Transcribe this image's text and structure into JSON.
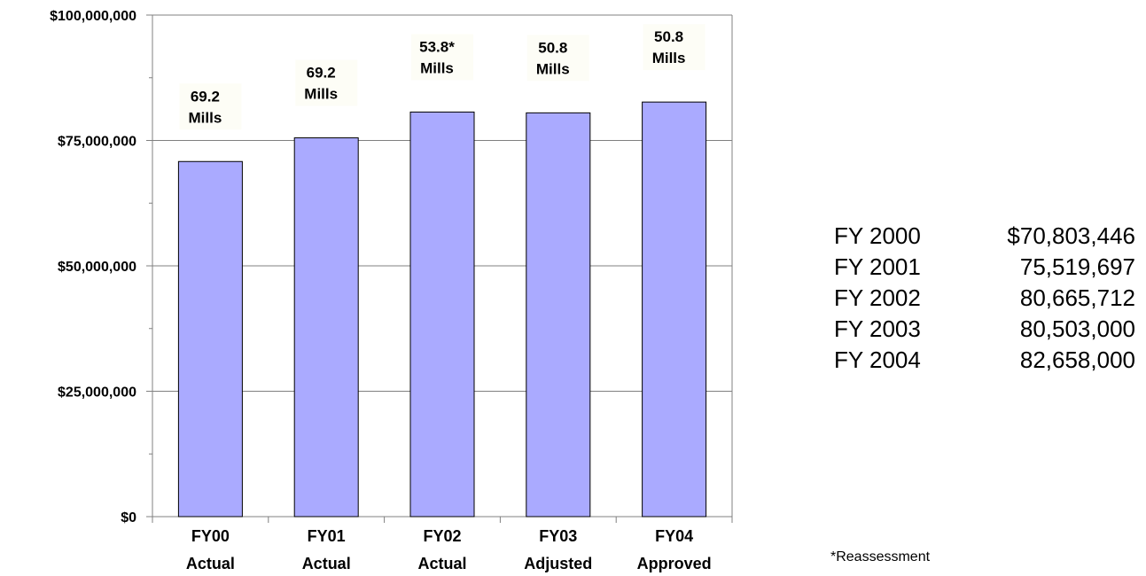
{
  "chart_data": {
    "type": "bar",
    "categories": [
      "FY00",
      "FY01",
      "FY02",
      "FY03",
      "FY04"
    ],
    "category_sublabels": [
      "Actual",
      "Actual",
      "Actual",
      "Adjusted",
      "Approved"
    ],
    "values": [
      70803446,
      75519697,
      80665712,
      80503000,
      82658000
    ],
    "bar_annotations": [
      [
        "69.2",
        "Mills"
      ],
      [
        "69.2",
        "Mills"
      ],
      [
        "53.8*",
        "Mills"
      ],
      [
        "50.8",
        "Mills"
      ],
      [
        "50.8",
        "Mills"
      ]
    ],
    "yticks": [
      0,
      25000000,
      50000000,
      75000000,
      100000000
    ],
    "ytick_labels": [
      "$0",
      "$25,000,000",
      "$50,000,000",
      "$75,000,000",
      "$100,000,000"
    ],
    "ylim": [
      0,
      100000000
    ],
    "title": "",
    "xlabel": "",
    "ylabel": "",
    "grid": true,
    "legend": "none",
    "colors": {
      "bar_fill": "#aaaaff",
      "bar_stroke": "#000000",
      "gridline": "#808080",
      "axis": "#808080",
      "annotation_background": "#fdfdf6"
    }
  },
  "value_table": [
    {
      "label": "FY 2000",
      "amount": "$70,803,446"
    },
    {
      "label": "FY 2001",
      "amount": "75,519,697"
    },
    {
      "label": "FY 2002",
      "amount": "80,665,712"
    },
    {
      "label": "FY 2003",
      "amount": "80,503,000"
    },
    {
      "label": "FY 2004",
      "amount": "82,658,000"
    }
  ],
  "footnote": "*Reassessment"
}
